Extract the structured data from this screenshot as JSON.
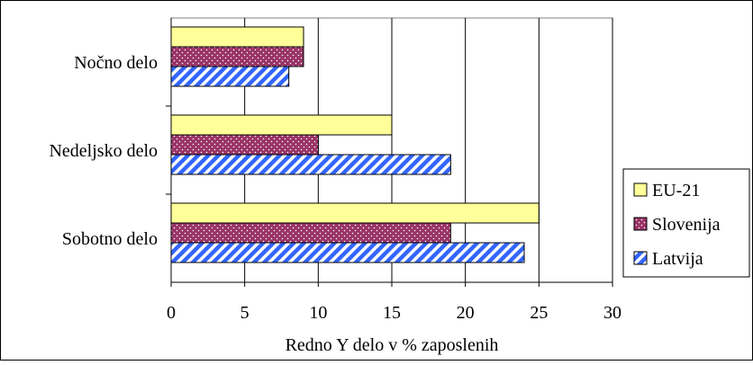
{
  "chart_data": {
    "type": "bar",
    "orientation": "horizontal",
    "categories": [
      "Nočno delo",
      "Nedeljsko delo",
      "Sobotno delo"
    ],
    "series": [
      {
        "name": "EU-21",
        "values": [
          9,
          15,
          25
        ]
      },
      {
        "name": "Slovenija",
        "values": [
          9,
          10,
          19
        ]
      },
      {
        "name": "Latvija",
        "values": [
          8,
          19,
          24
        ]
      }
    ],
    "xlim": [
      0,
      30
    ],
    "xticks": [
      "0",
      "5",
      "10",
      "15",
      "20",
      "25",
      "30"
    ],
    "xlabel": "Redno Y delo v % zaposlenih",
    "ylabel": "",
    "title": "",
    "grid": "vertical",
    "legend_position": "right",
    "colors": {
      "EU-21": "#ffff99",
      "Slovenija": "#993366",
      "Latvija": "#3366ff"
    }
  }
}
